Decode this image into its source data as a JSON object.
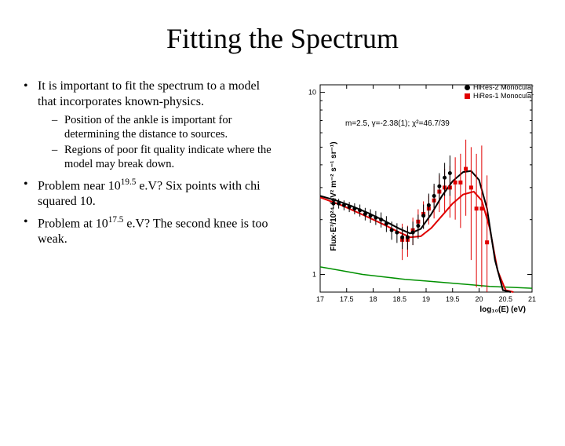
{
  "title": "Fitting the Spectrum",
  "bullets": {
    "b1": "It is important to fit the spectrum to a model that incorporates known-physics.",
    "b1a": "Position of the ankle is important for determining the distance to sources.",
    "b1b": "Regions of poor fit quality indicate where the model may break down.",
    "b2_pre": "Problem near 10",
    "b2_sup": "19.5",
    "b2_post": " e.V? Six points with chi squared 10.",
    "b3_pre": "Problem at 10",
    "b3_sup": "17.5",
    "b3_post": " e.V? The second knee is too weak."
  },
  "chart": {
    "type": "scatter-log",
    "ylabel": "Flux·E³/10²⁴ (eV² m⁻² s⁻¹ sr⁻¹)",
    "xlabel": "log₁₀(E) (eV)",
    "xlim": [
      17,
      21
    ],
    "ylim_log": [
      0.8,
      11
    ],
    "xticks": [
      17,
      17.5,
      18,
      18.5,
      19,
      19.5,
      20,
      20.5,
      21
    ],
    "yticks_major_labels": [
      "1",
      "10"
    ],
    "yticks_major_vals": [
      1,
      10
    ],
    "axis_color": "#000000",
    "grid_color": "#000000",
    "background_color": "#ffffff",
    "font_family": "Arial",
    "tick_fontsize": 9,
    "label_fontsize": 10,
    "legend": {
      "items": [
        {
          "label": "HiRes-2 Monocular",
          "color": "#000000",
          "marker": "circle"
        },
        {
          "label": "HiRes-1 Monocular",
          "color": "#e00000",
          "marker": "square"
        }
      ]
    },
    "fit_text": "m=2.5, γ=-2.38(1);  χ²=46.7/39",
    "series_black": {
      "color": "#000000",
      "marker": "circle",
      "marker_size": 5,
      "error_color": "#000000",
      "points": [
        {
          "x": 17.25,
          "y": 2.45,
          "elo": 0.15,
          "ehi": 0.15
        },
        {
          "x": 17.35,
          "y": 2.45,
          "elo": 0.15,
          "ehi": 0.15
        },
        {
          "x": 17.45,
          "y": 2.4,
          "elo": 0.15,
          "ehi": 0.15
        },
        {
          "x": 17.55,
          "y": 2.35,
          "elo": 0.15,
          "ehi": 0.15
        },
        {
          "x": 17.65,
          "y": 2.3,
          "elo": 0.16,
          "ehi": 0.16
        },
        {
          "x": 17.75,
          "y": 2.25,
          "elo": 0.17,
          "ehi": 0.17
        },
        {
          "x": 17.85,
          "y": 2.15,
          "elo": 0.17,
          "ehi": 0.17
        },
        {
          "x": 17.95,
          "y": 2.1,
          "elo": 0.18,
          "ehi": 0.18
        },
        {
          "x": 18.05,
          "y": 2.05,
          "elo": 0.18,
          "ehi": 0.18
        },
        {
          "x": 18.15,
          "y": 2.0,
          "elo": 0.19,
          "ehi": 0.19
        },
        {
          "x": 18.25,
          "y": 1.9,
          "elo": 0.19,
          "ehi": 0.19
        },
        {
          "x": 18.35,
          "y": 1.75,
          "elo": 0.2,
          "ehi": 0.2
        },
        {
          "x": 18.45,
          "y": 1.7,
          "elo": 0.21,
          "ehi": 0.21
        },
        {
          "x": 18.55,
          "y": 1.6,
          "elo": 0.22,
          "ehi": 0.22
        },
        {
          "x": 18.65,
          "y": 1.6,
          "elo": 0.23,
          "ehi": 0.23
        },
        {
          "x": 18.75,
          "y": 1.7,
          "elo": 0.25,
          "ehi": 0.25
        },
        {
          "x": 18.85,
          "y": 1.85,
          "elo": 0.28,
          "ehi": 0.28
        },
        {
          "x": 18.95,
          "y": 2.1,
          "elo": 0.32,
          "ehi": 0.32
        },
        {
          "x": 19.05,
          "y": 2.4,
          "elo": 0.38,
          "ehi": 0.38
        },
        {
          "x": 19.15,
          "y": 2.7,
          "elo": 0.45,
          "ehi": 0.45
        },
        {
          "x": 19.25,
          "y": 3.05,
          "elo": 0.55,
          "ehi": 0.55
        },
        {
          "x": 19.35,
          "y": 3.4,
          "elo": 0.7,
          "ehi": 0.7
        },
        {
          "x": 19.45,
          "y": 3.6,
          "elo": 0.9,
          "ehi": 0.9
        }
      ]
    },
    "series_red": {
      "color": "#e00000",
      "marker": "square",
      "marker_size": 5,
      "error_color": "#e00000",
      "points": [
        {
          "x": 18.55,
          "y": 1.55,
          "elo": 0.35,
          "ehi": 0.35
        },
        {
          "x": 18.65,
          "y": 1.55,
          "elo": 0.3,
          "ehi": 0.3
        },
        {
          "x": 18.75,
          "y": 1.75,
          "elo": 0.3,
          "ehi": 0.3
        },
        {
          "x": 18.85,
          "y": 1.95,
          "elo": 0.33,
          "ehi": 0.33
        },
        {
          "x": 18.95,
          "y": 2.15,
          "elo": 0.37,
          "ehi": 0.37
        },
        {
          "x": 19.05,
          "y": 2.3,
          "elo": 0.42,
          "ehi": 0.42
        },
        {
          "x": 19.15,
          "y": 2.55,
          "elo": 0.52,
          "ehi": 0.52
        },
        {
          "x": 19.25,
          "y": 2.85,
          "elo": 0.65,
          "ehi": 0.65
        },
        {
          "x": 19.35,
          "y": 3.0,
          "elo": 0.8,
          "ehi": 0.8
        },
        {
          "x": 19.45,
          "y": 3.0,
          "elo": 0.95,
          "ehi": 0.95
        },
        {
          "x": 19.55,
          "y": 3.2,
          "elo": 1.2,
          "ehi": 1.2
        },
        {
          "x": 19.65,
          "y": 3.2,
          "elo": 1.4,
          "ehi": 1.4
        },
        {
          "x": 19.75,
          "y": 3.8,
          "elo": 1.7,
          "ehi": 1.7
        },
        {
          "x": 19.85,
          "y": 3.0,
          "elo": 1.8,
          "ehi": 2.0
        },
        {
          "x": 19.95,
          "y": 2.3,
          "elo": 1.45,
          "ehi": 2.3
        },
        {
          "x": 20.05,
          "y": 2.3,
          "elo": 1.45,
          "ehi": 2.8
        },
        {
          "x": 20.15,
          "y": 1.5,
          "elo": 0.7,
          "ehi": 2.0
        }
      ]
    },
    "curve_black": {
      "color": "#000000",
      "width": 2,
      "points": [
        {
          "x": 17.0,
          "y": 2.7
        },
        {
          "x": 17.3,
          "y": 2.55
        },
        {
          "x": 17.6,
          "y": 2.37
        },
        {
          "x": 17.9,
          "y": 2.18
        },
        {
          "x": 18.2,
          "y": 1.98
        },
        {
          "x": 18.5,
          "y": 1.78
        },
        {
          "x": 18.7,
          "y": 1.68
        },
        {
          "x": 18.9,
          "y": 1.78
        },
        {
          "x": 19.1,
          "y": 2.15
        },
        {
          "x": 19.3,
          "y": 2.7
        },
        {
          "x": 19.5,
          "y": 3.25
        },
        {
          "x": 19.7,
          "y": 3.65
        },
        {
          "x": 19.85,
          "y": 3.7
        },
        {
          "x": 20.0,
          "y": 3.3
        },
        {
          "x": 20.15,
          "y": 2.3
        },
        {
          "x": 20.3,
          "y": 1.2
        },
        {
          "x": 20.45,
          "y": 0.82
        },
        {
          "x": 20.6,
          "y": 0.8
        }
      ]
    },
    "curve_red": {
      "color": "#e00000",
      "width": 2,
      "points": [
        {
          "x": 17.0,
          "y": 2.65
        },
        {
          "x": 17.4,
          "y": 2.4
        },
        {
          "x": 17.8,
          "y": 2.13
        },
        {
          "x": 18.2,
          "y": 1.88
        },
        {
          "x": 18.5,
          "y": 1.7
        },
        {
          "x": 18.7,
          "y": 1.6
        },
        {
          "x": 18.9,
          "y": 1.62
        },
        {
          "x": 19.1,
          "y": 1.8
        },
        {
          "x": 19.3,
          "y": 2.1
        },
        {
          "x": 19.5,
          "y": 2.45
        },
        {
          "x": 19.7,
          "y": 2.75
        },
        {
          "x": 19.9,
          "y": 2.85
        },
        {
          "x": 20.05,
          "y": 2.55
        },
        {
          "x": 20.2,
          "y": 1.8
        },
        {
          "x": 20.35,
          "y": 1.05
        },
        {
          "x": 20.5,
          "y": 0.82
        },
        {
          "x": 20.65,
          "y": 0.8
        }
      ]
    },
    "curve_green": {
      "color": "#009000",
      "width": 1.5,
      "points": [
        {
          "x": 17.0,
          "y": 1.1
        },
        {
          "x": 17.4,
          "y": 1.05
        },
        {
          "x": 17.8,
          "y": 1.0
        },
        {
          "x": 18.2,
          "y": 0.97
        },
        {
          "x": 18.6,
          "y": 0.94
        },
        {
          "x": 19.0,
          "y": 0.92
        },
        {
          "x": 19.4,
          "y": 0.9
        },
        {
          "x": 19.8,
          "y": 0.88
        },
        {
          "x": 20.2,
          "y": 0.86
        },
        {
          "x": 20.6,
          "y": 0.85
        },
        {
          "x": 21.0,
          "y": 0.84
        }
      ]
    }
  }
}
